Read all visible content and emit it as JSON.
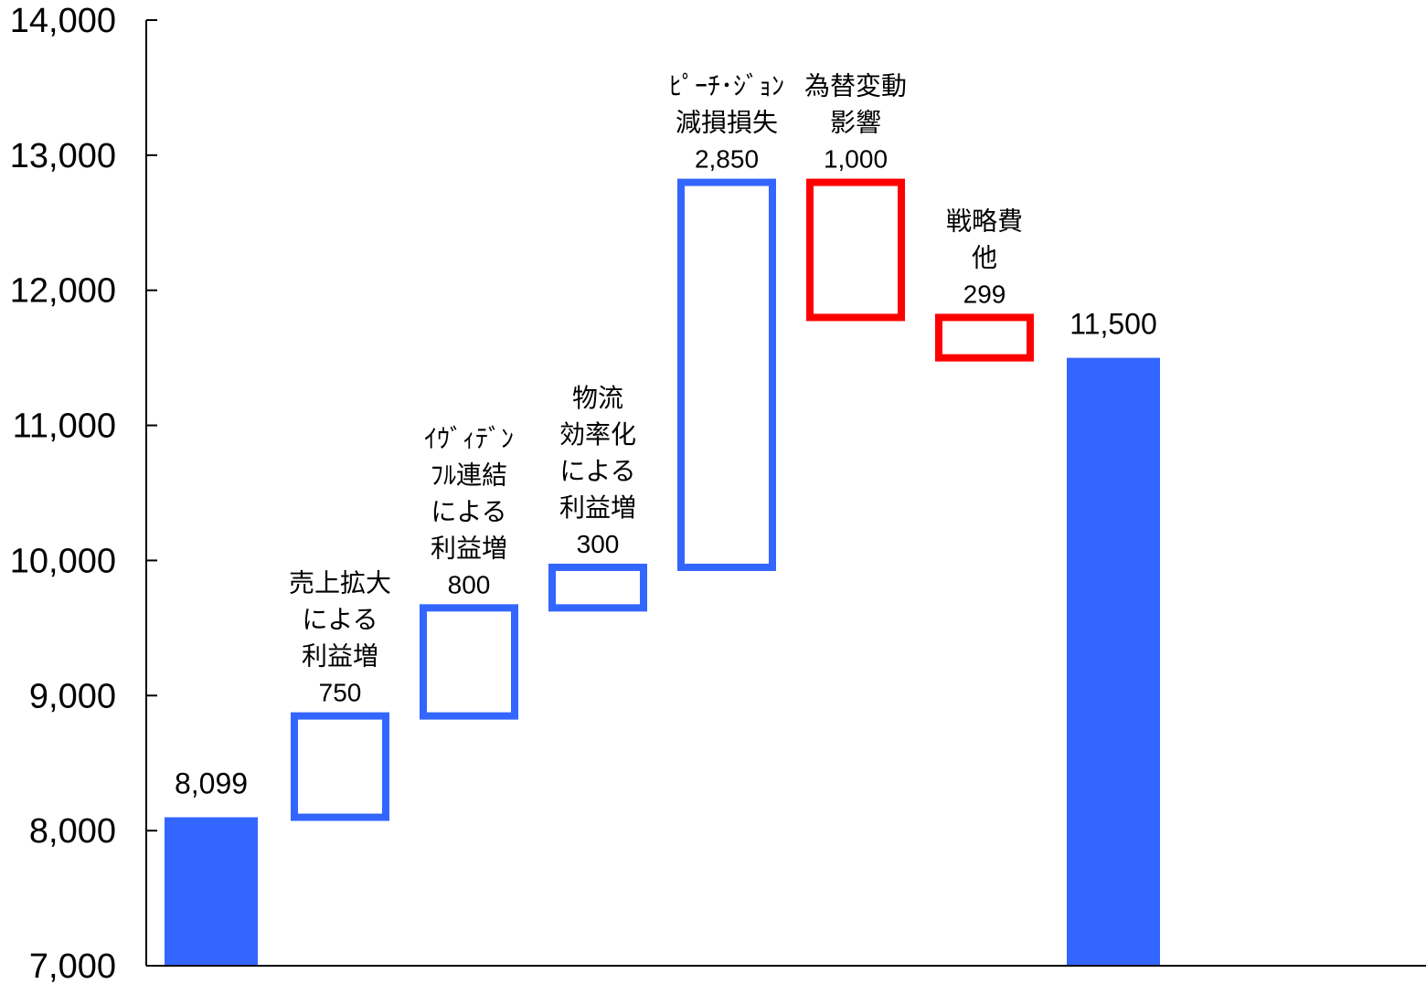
{
  "chart_data": {
    "type": "bar",
    "style": "waterfall",
    "grid": false,
    "y_axis": {
      "range": [
        7000,
        14000
      ],
      "ticks": [
        7000,
        8000,
        9000,
        10000,
        11000,
        12000,
        13000,
        14000
      ],
      "tick_labels": [
        "7,000",
        "8,000",
        "9,000",
        "10,000",
        "11,000",
        "12,000",
        "13,000",
        "14,000"
      ]
    },
    "steps": [
      {
        "kind": "total",
        "value": 8099,
        "value_label": "8,099"
      },
      {
        "kind": "increase",
        "value": 750,
        "value_label": "750",
        "label_lines": [
          "売上拡大",
          "による",
          "利益増"
        ]
      },
      {
        "kind": "increase",
        "value": 800,
        "value_label": "800",
        "label_lines": [
          "ｲｳﾞｨﾃﾞﾝ",
          "ﾌﾙ連結",
          "による",
          "利益増"
        ]
      },
      {
        "kind": "increase",
        "value": 300,
        "value_label": "300",
        "label_lines": [
          "物流",
          "効率化",
          "による",
          "利益増"
        ]
      },
      {
        "kind": "increase",
        "value": 2850,
        "value_label": "2,850",
        "label_lines": [
          "ﾋﾟｰﾁ･ｼﾞｮﾝ",
          "減損損失"
        ]
      },
      {
        "kind": "decrease",
        "value": 1000,
        "value_label": "1,000",
        "label_lines": [
          "為替変動",
          "影響"
        ]
      },
      {
        "kind": "decrease",
        "value": 299,
        "value_label": "299",
        "label_lines": [
          "戦略費",
          "他"
        ]
      },
      {
        "kind": "total",
        "value": 11500,
        "value_label": "11,500"
      }
    ]
  },
  "colors": {
    "total": "#3366ff",
    "increase": "#3366ff",
    "decrease": "#ff0000",
    "axis": "#000000"
  }
}
